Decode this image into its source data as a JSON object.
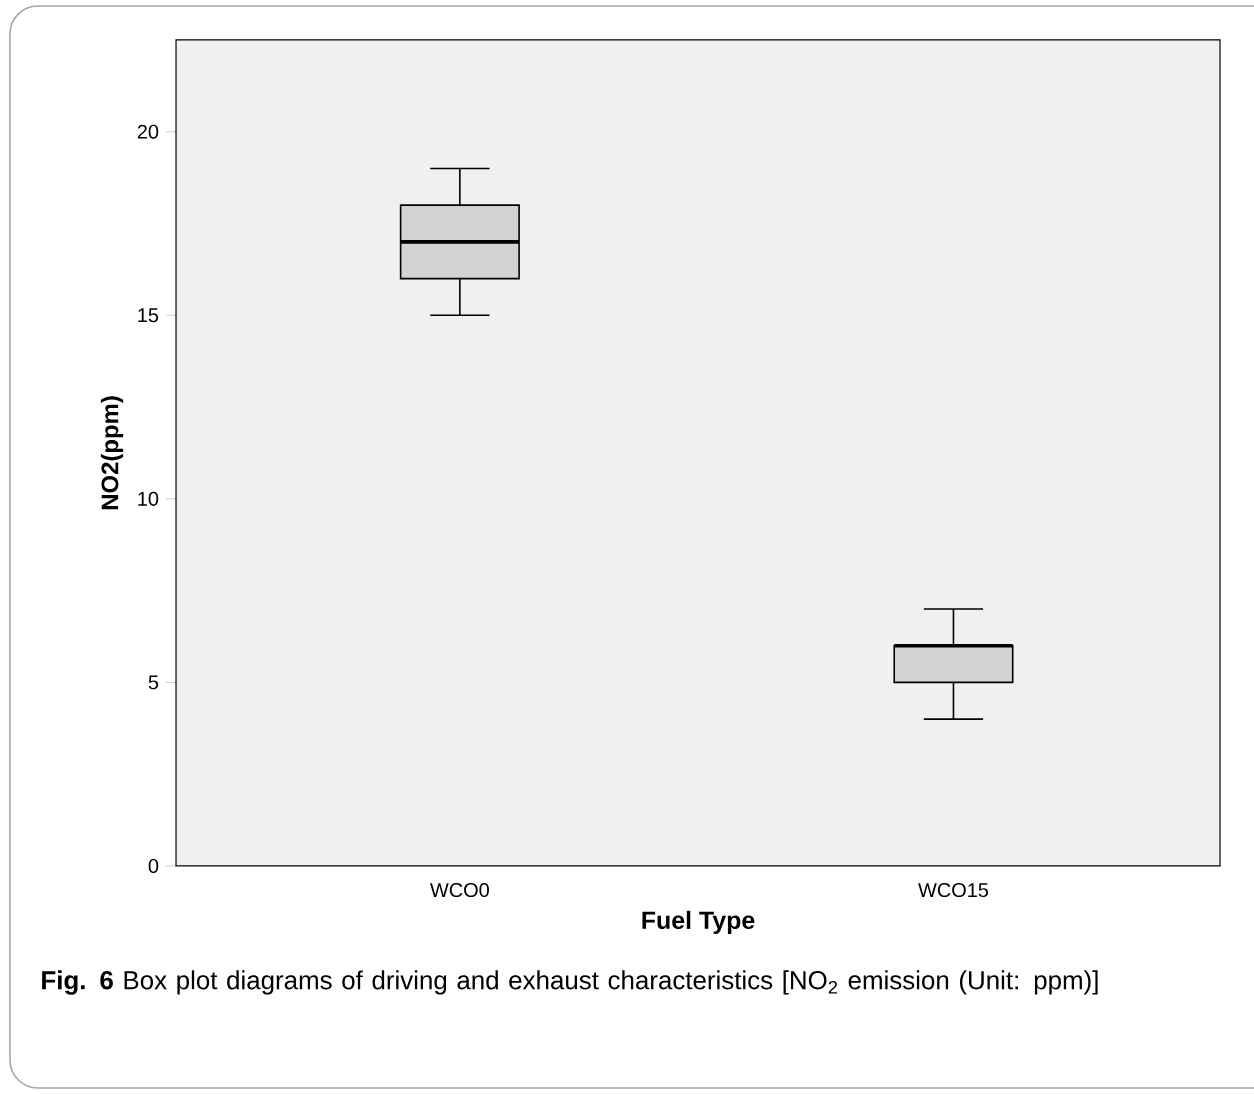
{
  "chart_data": {
    "type": "box",
    "categories": [
      "WCO0",
      "WCO15"
    ],
    "xlabel": "Fuel Type",
    "ylabel": "NO2(ppm)",
    "ylim": [
      0,
      22.5
    ],
    "yticks": [
      0,
      5,
      10,
      15,
      20
    ],
    "color": "#d3d3d3",
    "boxes": [
      {
        "low": 15,
        "q1": 16,
        "median": 17,
        "q3": 18,
        "high": 19
      },
      {
        "low": 4,
        "q1": 5,
        "median": 6,
        "q3": 6,
        "high": 7
      }
    ],
    "annotations": [
      "**Fig. 6** Box plot diagrams of driving and exhaust characteristics [NO$_{2}$ emission (Unit: ppm)]"
    ]
  }
}
